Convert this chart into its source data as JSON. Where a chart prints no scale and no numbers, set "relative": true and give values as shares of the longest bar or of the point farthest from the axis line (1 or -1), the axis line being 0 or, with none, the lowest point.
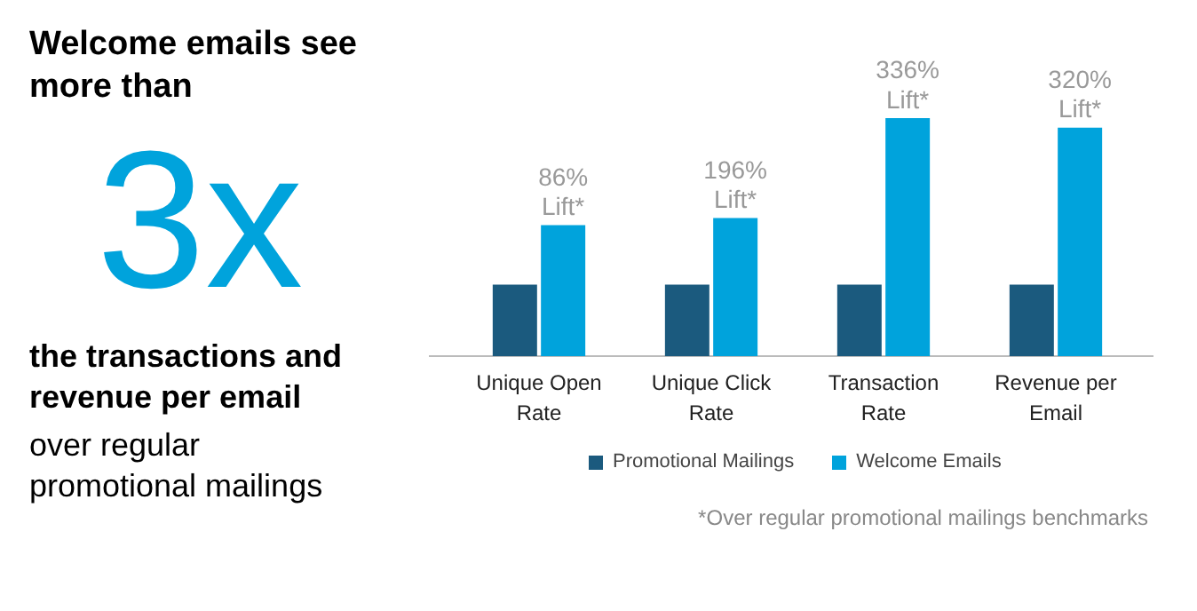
{
  "chart_data": {
    "type": "bar",
    "relative": true,
    "title": "Welcome emails see more than",
    "subtitle": "3x",
    "annotations": [
      "the transactions and revenue per email",
      "over regular promotional mailings",
      "*Over regular promotional mailings benchmarks",
      {
        "text": "86%\nLift*",
        "x": "Unique Open Rate",
        "y": 0.55
      },
      {
        "text": "196%\nLift*",
        "x": "Unique Click Rate",
        "y": 0.58
      },
      {
        "text": "336%\nLift*",
        "x": "Transaction Rate",
        "y": 1
      },
      {
        "text": "320%\nLift*",
        "x": "Revenue per Email",
        "y": 0.96
      }
    ],
    "categories": [
      "Unique Open Rate",
      "Unique Click Rate",
      "Transaction Rate",
      "Revenue per Email"
    ],
    "series": [
      {
        "name": "Promotional Mailings",
        "color": "#1b5a7e",
        "values": [
          0.3,
          0.3,
          0.3,
          0.3
        ]
      },
      {
        "name": "Welcome Emails",
        "color": "#00a3dc",
        "values": [
          0.55,
          0.58,
          1,
          0.96
        ]
      }
    ],
    "legend": "bottom",
    "grid": false
  }
}
